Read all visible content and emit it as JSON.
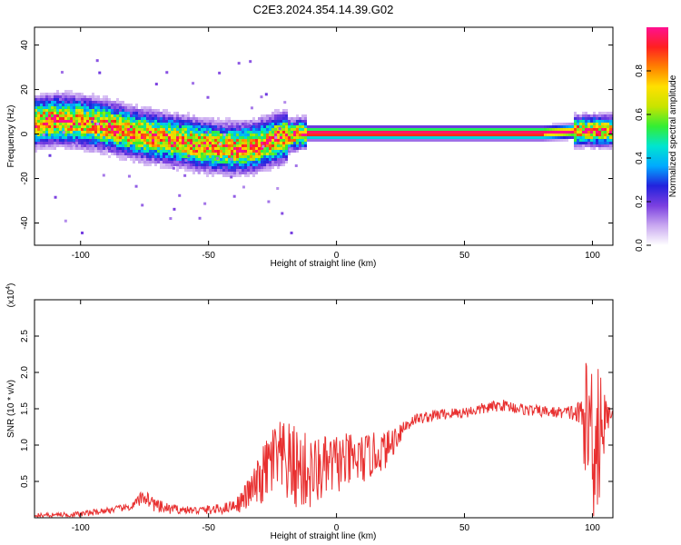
{
  "title": "C2E3.2024.354.14.39.G02",
  "chart_data": [
    {
      "type": "heatmap",
      "xlabel": "Height of straight line (km)",
      "ylabel": "Frequency (Hz)",
      "xlim": [
        -118,
        108
      ],
      "ylim": [
        -50,
        48
      ],
      "xticks": [
        -100,
        -50,
        0,
        50,
        100
      ],
      "yticks": [
        -40,
        -20,
        0,
        20,
        40
      ],
      "colorbar": {
        "label": "Normalized spectral amplitude",
        "range": [
          0,
          1
        ],
        "ticks": [
          "0.0",
          "0.2",
          "0.4",
          "0.6",
          "0.8"
        ],
        "colors": [
          "#ffffff",
          "#c9a8f0",
          "#7b3fe0",
          "#2222dd",
          "#00aaff",
          "#00e5d0",
          "#33ee33",
          "#c8e400",
          "#ffe000",
          "#ff8000",
          "#ff2020",
          "#ff1090"
        ]
      },
      "ridge": [
        {
          "x": -118,
          "f": 6
        },
        {
          "x": -110,
          "f": 7
        },
        {
          "x": -100,
          "f": 6
        },
        {
          "x": -90,
          "f": 4
        },
        {
          "x": -80,
          "f": 1
        },
        {
          "x": -70,
          "f": -1
        },
        {
          "x": -60,
          "f": -3
        },
        {
          "x": -50,
          "f": -5
        },
        {
          "x": -40,
          "f": -6
        },
        {
          "x": -32,
          "f": -5
        },
        {
          "x": -25,
          "f": -2
        },
        {
          "x": -18,
          "f": 0
        },
        {
          "x": -12,
          "f": 1
        },
        {
          "x": 0,
          "f": 1
        },
        {
          "x": 20,
          "f": 1
        },
        {
          "x": 50,
          "f": 1
        },
        {
          "x": 80,
          "f": 1
        },
        {
          "x": 95,
          "f": 2
        },
        {
          "x": 100,
          "f": 2
        },
        {
          "x": 108,
          "f": 2
        }
      ]
    },
    {
      "type": "line",
      "xlabel": "Height of straight line (km)",
      "ylabel": "SNR (10 * v/v)",
      "multiplier": "(x10",
      "multiplier_exp": "4",
      "multiplier_close": ")",
      "xlim": [
        -118,
        108
      ],
      "ylim": [
        0,
        3.0
      ],
      "xticks": [
        -100,
        -50,
        0,
        50,
        100
      ],
      "yticks": [
        0.5,
        1.0,
        1.5,
        2.0,
        2.5
      ],
      "color": "#e83030",
      "series": [
        {
          "trend": [
            {
              "x": -118,
              "y": 0.03
            },
            {
              "x": -100,
              "y": 0.05
            },
            {
              "x": -90,
              "y": 0.1
            },
            {
              "x": -80,
              "y": 0.15
            },
            {
              "x": -75,
              "y": 0.3
            },
            {
              "x": -70,
              "y": 0.15
            },
            {
              "x": -65,
              "y": 0.12
            },
            {
              "x": -55,
              "y": 0.1
            },
            {
              "x": -45,
              "y": 0.12
            },
            {
              "x": -38,
              "y": 0.2
            },
            {
              "x": -30,
              "y": 0.5
            },
            {
              "x": -25,
              "y": 0.8
            },
            {
              "x": -20,
              "y": 0.75
            },
            {
              "x": -10,
              "y": 0.6
            },
            {
              "x": 0,
              "y": 0.75
            },
            {
              "x": 10,
              "y": 0.8
            },
            {
              "x": 20,
              "y": 0.95
            },
            {
              "x": 25,
              "y": 1.2
            },
            {
              "x": 30,
              "y": 1.35
            },
            {
              "x": 40,
              "y": 1.42
            },
            {
              "x": 50,
              "y": 1.45
            },
            {
              "x": 60,
              "y": 1.52
            },
            {
              "x": 65,
              "y": 1.55
            },
            {
              "x": 75,
              "y": 1.48
            },
            {
              "x": 85,
              "y": 1.45
            },
            {
              "x": 92,
              "y": 1.45
            },
            {
              "x": 96,
              "y": 1.4
            },
            {
              "x": 100,
              "y": 1.2
            },
            {
              "x": 104,
              "y": 1.3
            },
            {
              "x": 108,
              "y": 1.48
            }
          ],
          "noise": [
            {
              "x": -118,
              "a": 0.03
            },
            {
              "x": -80,
              "a": 0.05
            },
            {
              "x": -75,
              "a": 0.12
            },
            {
              "x": -60,
              "a": 0.05
            },
            {
              "x": -40,
              "a": 0.08
            },
            {
              "x": -33,
              "a": 0.25
            },
            {
              "x": -25,
              "a": 0.55
            },
            {
              "x": -15,
              "a": 0.6
            },
            {
              "x": -5,
              "a": 0.45
            },
            {
              "x": 10,
              "a": 0.35
            },
            {
              "x": 20,
              "a": 0.25
            },
            {
              "x": 30,
              "a": 0.08
            },
            {
              "x": 60,
              "a": 0.08
            },
            {
              "x": 90,
              "a": 0.08
            },
            {
              "x": 95,
              "a": 0.2
            },
            {
              "x": 99,
              "a": 1.2
            },
            {
              "x": 101,
              "a": 1.5
            },
            {
              "x": 103,
              "a": 1.2
            },
            {
              "x": 105,
              "a": 0.3
            },
            {
              "x": 108,
              "a": 0.05
            }
          ]
        }
      ]
    }
  ]
}
